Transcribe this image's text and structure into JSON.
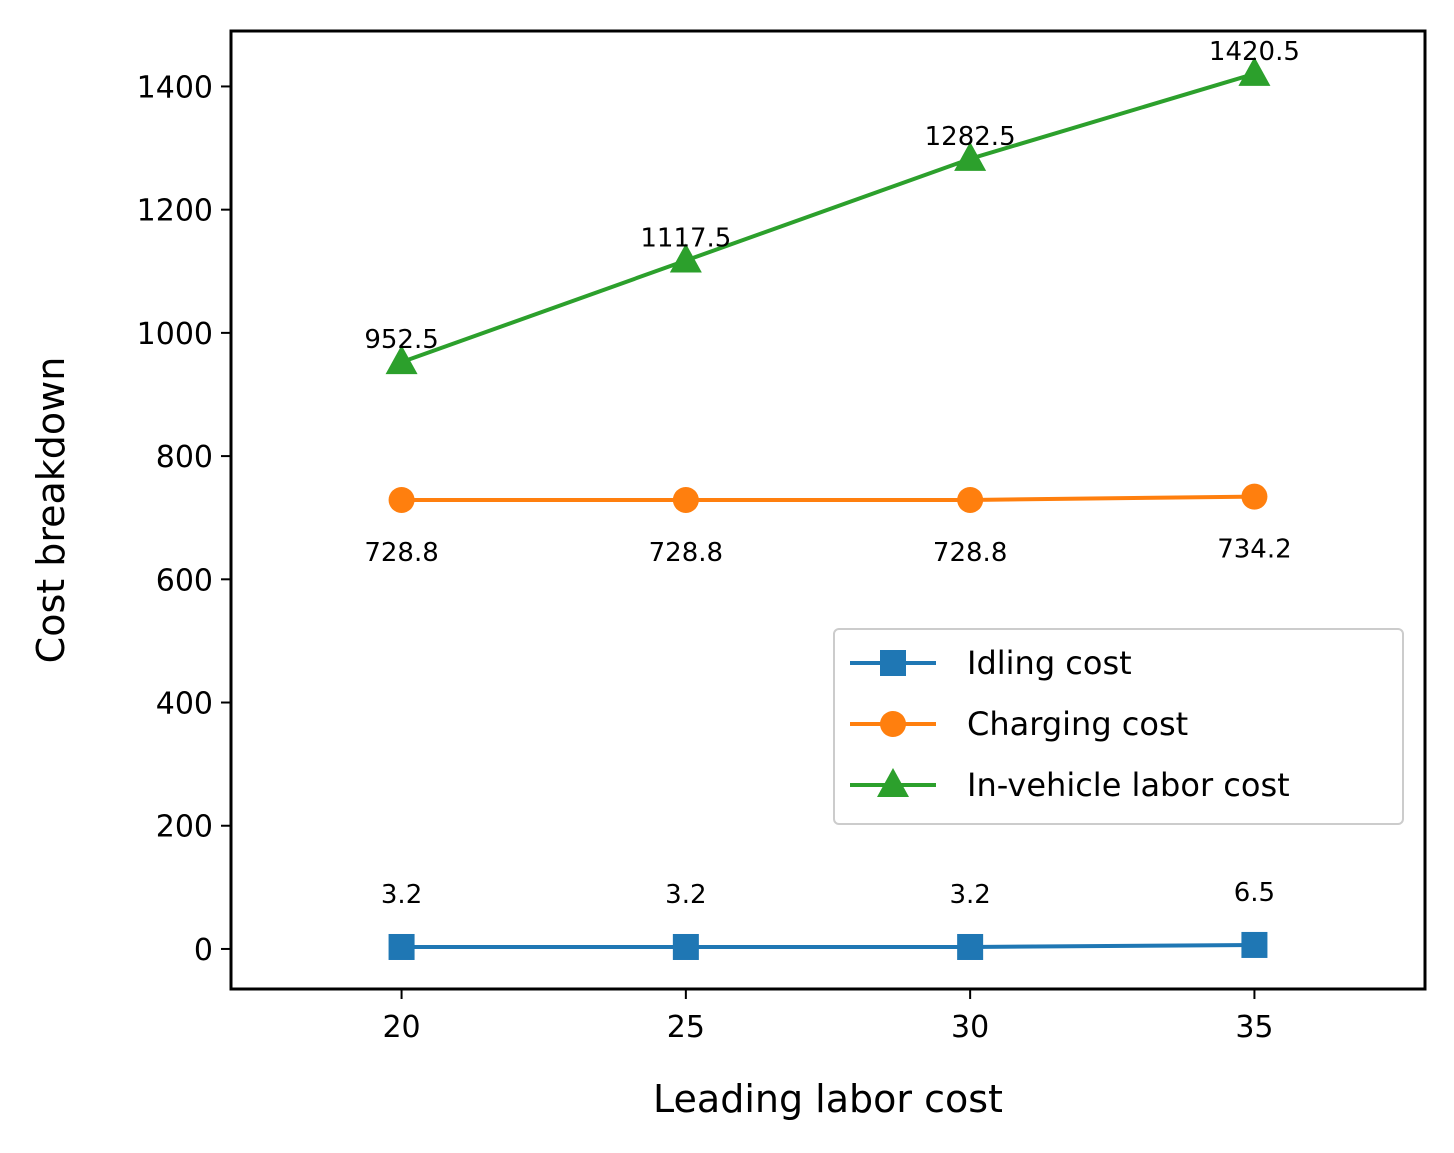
{
  "chart_data": {
    "type": "line",
    "title": "",
    "xlabel": "Leading labor cost",
    "ylabel": "Cost breakdown",
    "x": [
      20,
      25,
      30,
      35
    ],
    "xlim": [
      17,
      38
    ],
    "ylim": [
      -65,
      1490
    ],
    "xticks": [
      20,
      25,
      30,
      35
    ],
    "yticks": [
      0,
      200,
      400,
      600,
      800,
      1000,
      1200,
      1400
    ],
    "grid": false,
    "legend_position": "lower-right",
    "series": [
      {
        "name": "Idling cost",
        "values": [
          3.2,
          3.2,
          3.2,
          6.5
        ],
        "labels": [
          "3.2",
          "3.2",
          "3.2",
          "6.5"
        ],
        "color": "#1f77b4",
        "marker": "square",
        "label_position": "above"
      },
      {
        "name": "Charging cost",
        "values": [
          728.8,
          728.8,
          728.8,
          734.2
        ],
        "labels": [
          "728.8",
          "728.8",
          "728.8",
          "734.2"
        ],
        "color": "#ff7f0e",
        "marker": "circle",
        "label_position": "below"
      },
      {
        "name": "In-vehicle labor cost",
        "values": [
          952.5,
          1117.5,
          1282.5,
          1420.5
        ],
        "labels": [
          "952.5",
          "1117.5",
          "1282.5",
          "1420.5"
        ],
        "color": "#2ca02c",
        "marker": "triangle",
        "label_position": "above"
      }
    ]
  }
}
